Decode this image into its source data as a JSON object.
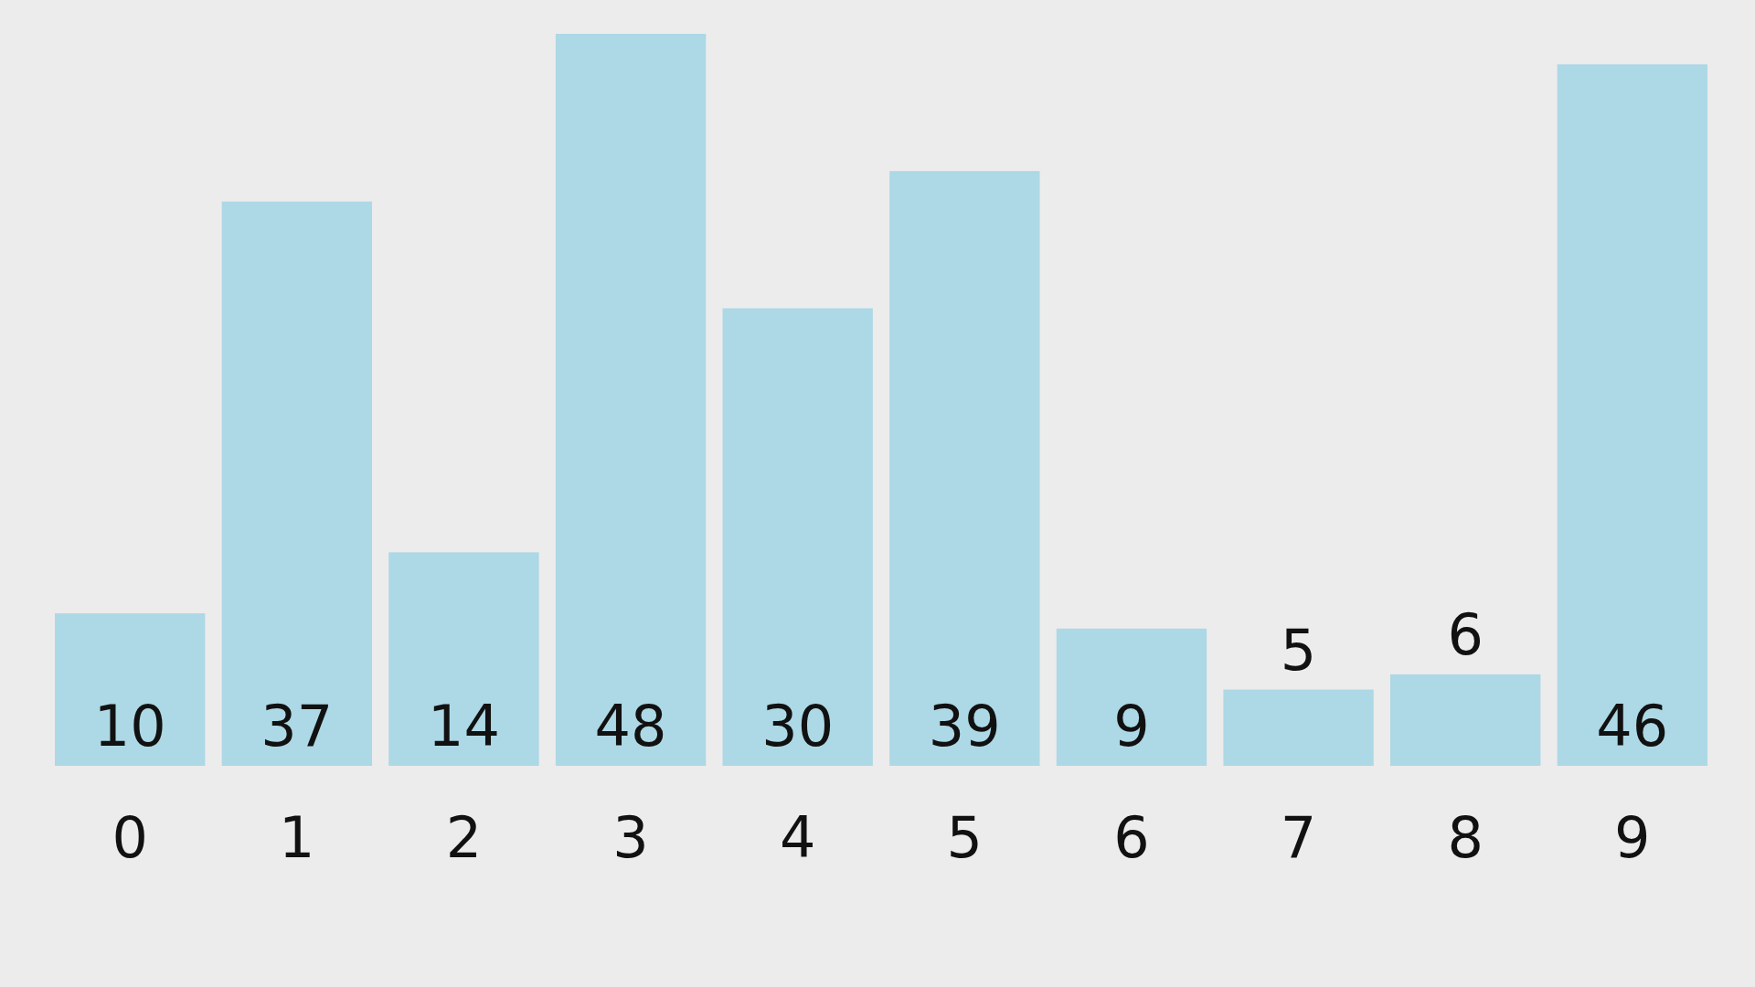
{
  "chart_data": {
    "type": "bar",
    "categories": [
      "0",
      "1",
      "2",
      "3",
      "4",
      "5",
      "6",
      "7",
      "8",
      "9"
    ],
    "values": [
      10,
      37,
      14,
      48,
      30,
      39,
      9,
      5,
      6,
      46
    ],
    "color": "#add8e6",
    "data_labels": true
  }
}
